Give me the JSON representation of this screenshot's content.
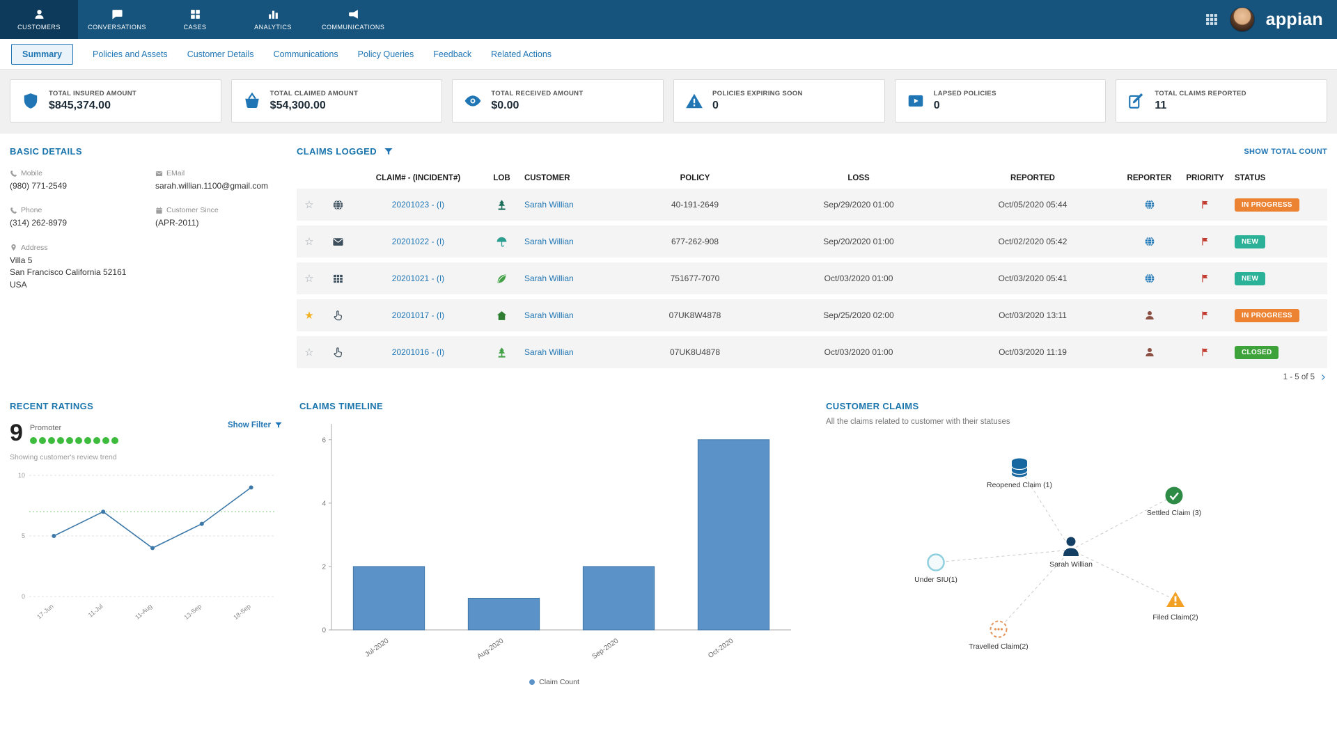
{
  "header": {
    "logo": "appian",
    "nav": [
      {
        "label": "CUSTOMERS",
        "icon": "user"
      },
      {
        "label": "CONVERSATIONS",
        "icon": "chat"
      },
      {
        "label": "CASES",
        "icon": "grid"
      },
      {
        "label": "ANALYTICS",
        "icon": "chart"
      },
      {
        "label": "COMMUNICATIONS",
        "icon": "megaphone"
      }
    ]
  },
  "tabs": [
    {
      "label": "Summary"
    },
    {
      "label": "Policies and Assets"
    },
    {
      "label": "Customer Details"
    },
    {
      "label": "Communications"
    },
    {
      "label": "Policy Queries"
    },
    {
      "label": "Feedback"
    },
    {
      "label": "Related Actions"
    }
  ],
  "kpis": [
    {
      "label": "TOTAL INSURED AMOUNT",
      "value": "$845,374.00",
      "icon": "shield"
    },
    {
      "label": "TOTAL CLAIMED AMOUNT",
      "value": "$54,300.00",
      "icon": "basket"
    },
    {
      "label": "TOTAL RECEIVED AMOUNT",
      "value": "$0.00",
      "icon": "eye"
    },
    {
      "label": "POLICIES EXPIRING SOON",
      "value": "0",
      "icon": "warning"
    },
    {
      "label": "LAPSED POLICIES",
      "value": "0",
      "icon": "video"
    },
    {
      "label": "TOTAL CLAIMS REPORTED",
      "value": "11",
      "icon": "edit"
    }
  ],
  "basic_details": {
    "title": "BASIC DETAILS",
    "fields": [
      {
        "label": "Mobile",
        "value": "(980) 771-2549",
        "icon": "phone"
      },
      {
        "label": "Phone",
        "value": "(314) 262-8979",
        "icon": "phone"
      },
      {
        "label": "EMail",
        "value": "sarah.willian.1100@gmail.com",
        "icon": "envelope"
      },
      {
        "label": "Customer Since",
        "value": "(APR-2011)",
        "icon": "calendar"
      },
      {
        "label": "Address",
        "value": "Villa 5\nSan Francisco California 52161\nUSA",
        "icon": "pin"
      }
    ]
  },
  "claims": {
    "title": "CLAIMS LOGGED",
    "show_total": "SHOW TOTAL COUNT",
    "columns": [
      "CLAIM# - (INCIDENT#)",
      "LOB",
      "CUSTOMER",
      "POLICY",
      "LOSS",
      "REPORTED",
      "REPORTER",
      "PRIORITY",
      "STATUS"
    ],
    "rows": [
      {
        "star": "☆",
        "channel_icon": "globe",
        "claim": "20201023 - (I)",
        "lob_icon": "tree",
        "lob_color": "#1b6e5a",
        "customer": "Sarah Willian",
        "policy": "40-191-2649",
        "loss": "Sep/29/2020 01:00",
        "reported": "Oct/05/2020 05:44",
        "reporter_icon": "globe",
        "reporter_color": "#2076b4",
        "priority": "High",
        "status": "IN PROGRESS"
      },
      {
        "star": "☆",
        "channel_icon": "envelope",
        "claim": "20201022 - (I)",
        "lob_icon": "umbrella",
        "lob_color": "#2a9d8f",
        "customer": "Sarah Willian",
        "policy": "677-262-908",
        "loss": "Sep/20/2020 01:00",
        "reported": "Oct/02/2020 05:42",
        "reporter_icon": "globe",
        "reporter_color": "#2076b4",
        "priority": "High",
        "status": "NEW"
      },
      {
        "star": "☆",
        "channel_icon": "tablegrid",
        "claim": "20201021 - (I)",
        "lob_icon": "leaf",
        "lob_color": "#43a047",
        "customer": "Sarah Willian",
        "policy": "751677-7070",
        "loss": "Oct/03/2020 01:00",
        "reported": "Oct/03/2020 05:41",
        "reporter_icon": "globe",
        "reporter_color": "#2076b4",
        "priority": "High",
        "status": "NEW"
      },
      {
        "star": "★",
        "channel_icon": "hand",
        "claim": "20201017 - (I)",
        "lob_icon": "home",
        "lob_color": "#2e7d32",
        "customer": "Sarah Willian",
        "policy": "07UK8W4878",
        "loss": "Sep/25/2020 02:00",
        "reported": "Oct/03/2020 13:11",
        "reporter_icon": "user",
        "reporter_color": "#8d5044",
        "priority": "High",
        "status": "IN PROGRESS"
      },
      {
        "star": "☆",
        "channel_icon": "hand",
        "claim": "20201016 - (I)",
        "lob_icon": "tree",
        "lob_color": "#43a047",
        "customer": "Sarah Willian",
        "policy": "07UK8U4878",
        "loss": "Oct/03/2020 01:00",
        "reported": "Oct/03/2020 11:19",
        "reporter_icon": "user",
        "reporter_color": "#8d5044",
        "priority": "High",
        "status": "CLOSED"
      }
    ],
    "pagination": "1 - 5 of 5",
    "status_colors": {
      "IN PROGRESS": "#ec8333",
      "NEW": "#2bb197",
      "CLOSED": "#3da23a"
    }
  },
  "ratings": {
    "title": "RECENT RATINGS",
    "score": "9",
    "score_label": "Promoter",
    "dots": 10,
    "filter_label": "Show Filter",
    "note": "Showing customer's review trend",
    "chart": {
      "type": "line",
      "x": [
        "17-Jun",
        "11-Jul",
        "11-Aug",
        "13-Sep",
        "18-Sep"
      ],
      "values": [
        5,
        7,
        4,
        6,
        9
      ],
      "yticks": [
        0,
        5,
        10
      ],
      "ylim": [
        0,
        10
      ],
      "refline": 7,
      "line_color": "#3c78a8"
    }
  },
  "timeline": {
    "title": "CLAIMS TIMELINE",
    "chart": {
      "type": "bar",
      "categories": [
        "Jul-2020",
        "Aug-2020",
        "Sep-2020",
        "Oct-2020"
      ],
      "values": [
        2,
        1,
        2,
        6
      ],
      "yticks": [
        0,
        2,
        4,
        6
      ],
      "ylim": [
        0,
        6.5
      ],
      "legend": "Claim Count",
      "bar_color": "#5b93c9"
    }
  },
  "customer_claims": {
    "title": "CUSTOMER CLAIMS",
    "subtitle": "All the claims related to customer with their statuses",
    "center_label": "Sarah Willian",
    "nodes": [
      {
        "label": "Reopened Claim (1)",
        "icon": "database",
        "color": "#1767a0"
      },
      {
        "label": "Settled Claim (3)",
        "icon": "check-circle",
        "color": "#2e8b46"
      },
      {
        "label": "Under SIU(1)",
        "icon": "outline-circle",
        "color": "#8fcfdf"
      },
      {
        "label": "Filed Claim(2)",
        "icon": "warning",
        "color": "#f2a124"
      },
      {
        "label": "Travelled Claim(2)",
        "icon": "dashed-circle",
        "color": "#e2955c"
      }
    ]
  }
}
